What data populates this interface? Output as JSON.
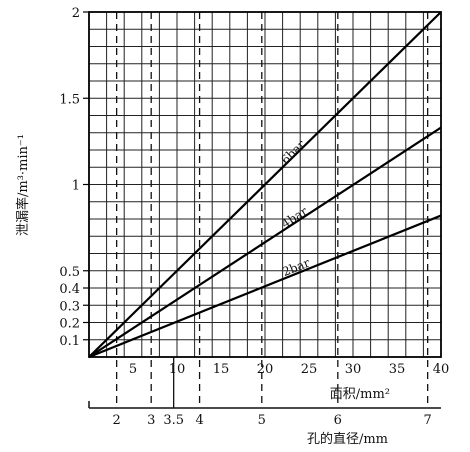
{
  "chart_data": {
    "type": "line",
    "ylabel": "泄漏率/m³·min⁻¹",
    "xlabel": "面积/mm²",
    "x2label": "孔的直径/mm",
    "xlim": [
      0,
      40
    ],
    "ylim": [
      0,
      2
    ],
    "x_ticks": [
      5,
      10,
      15,
      20,
      25,
      30,
      35,
      40
    ],
    "x_tick_labels": [
      "5",
      "10",
      "15",
      "20",
      "25",
      "30",
      "35",
      "40"
    ],
    "y_tick_values": [
      0.1,
      0.2,
      0.3,
      0.4,
      0.5,
      1,
      1.5,
      2
    ],
    "y_tick_labels": [
      "0.1",
      "0.2",
      "0.3",
      "0.4",
      "0.5",
      "1",
      "1.5",
      "2"
    ],
    "diameter_ticks": [
      2,
      3,
      3.5,
      4,
      5,
      6,
      7
    ],
    "diameter_tick_labels": [
      "2",
      "3",
      "3.5",
      "4",
      "5",
      "6",
      "7"
    ],
    "grid": true,
    "series": [
      {
        "name": "6bar",
        "x": [
          0,
          40
        ],
        "y": [
          0,
          2.0
        ]
      },
      {
        "name": "4bar",
        "x": [
          0,
          40
        ],
        "y": [
          0,
          1.33
        ]
      },
      {
        "name": "2bar",
        "x": [
          0,
          40
        ],
        "y": [
          0,
          0.82
        ]
      }
    ]
  }
}
